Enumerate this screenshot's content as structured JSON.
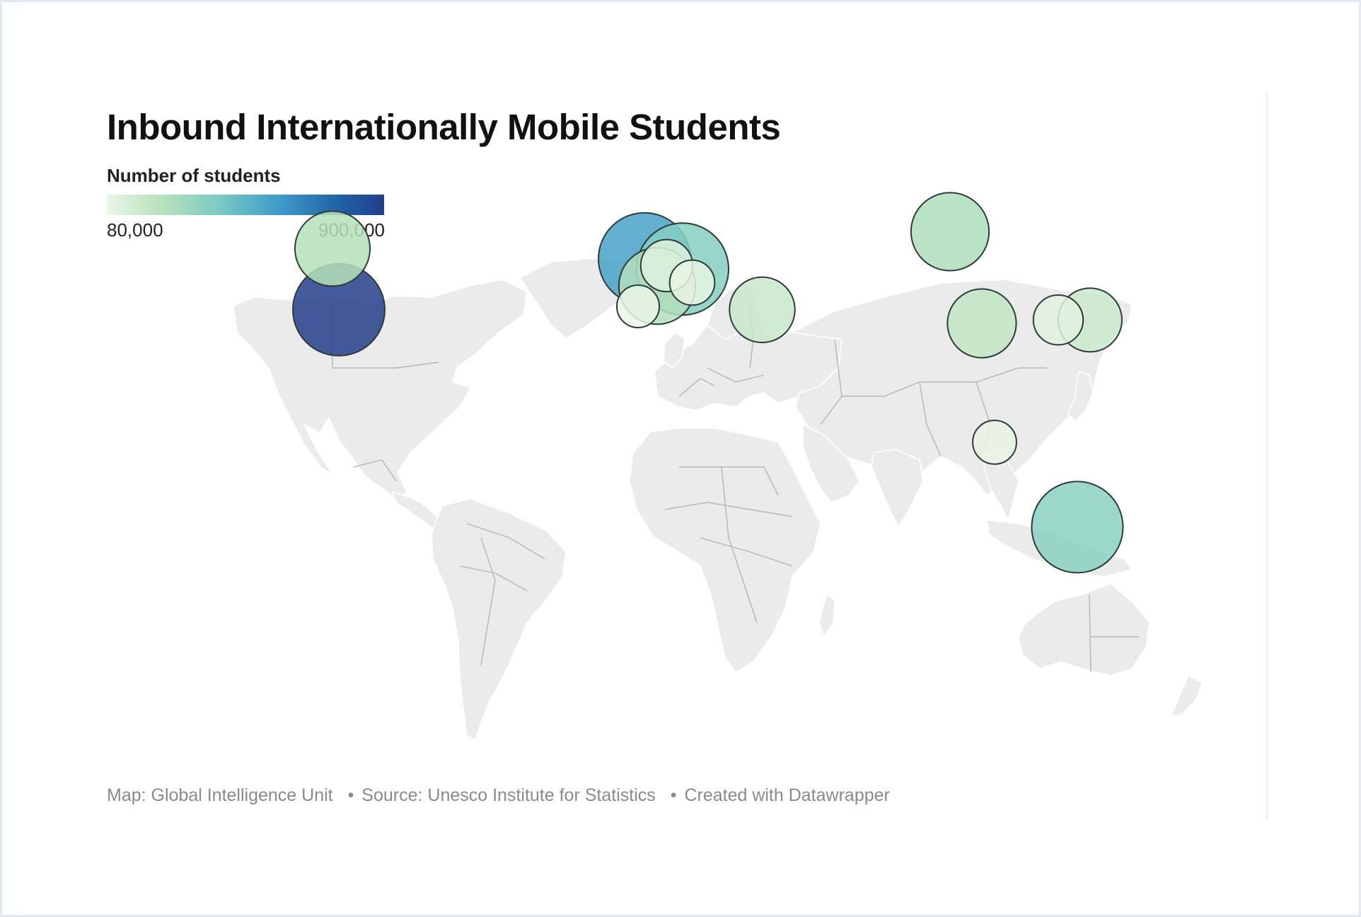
{
  "title": "Inbound Internationally Mobile Students",
  "legend": {
    "title": "Number of students",
    "min_label": "80,000",
    "max_label": "900,000",
    "min": 80000,
    "max": 900000,
    "colors": [
      "#eaf6e6",
      "#b7e1bb",
      "#7ccbc4",
      "#3f9bc9",
      "#1f5fa5",
      "#233f8b"
    ]
  },
  "footer": {
    "map_credit": "Map: Global Intelligence Unit",
    "sep": "•",
    "source": "Source: Unesco Institute for Statistics",
    "created": "Created with Datawrapper"
  },
  "colors": {
    "land": "#ebebeb",
    "border": "#b5b5b5",
    "bubble_stroke": "#2f3b3b"
  },
  "chart_data": {
    "type": "bubble-map",
    "value_label": "Number of students",
    "range": [
      80000,
      900000
    ],
    "points": [
      {
        "lon": -98,
        "lat": 39,
        "value": 900000
      },
      {
        "lon": -100,
        "lat": 57,
        "value": 250000
      },
      {
        "lon": -2,
        "lat": 54,
        "value": 550000
      },
      {
        "lon": 10,
        "lat": 51,
        "value": 380000
      },
      {
        "lon": 2,
        "lat": 46,
        "value": 260000
      },
      {
        "lon": 5,
        "lat": 52,
        "value": 120000
      },
      {
        "lon": 13,
        "lat": 47,
        "value": 90000
      },
      {
        "lon": -4,
        "lat": 40,
        "value": 80000
      },
      {
        "lon": 35,
        "lat": 39,
        "value": 190000
      },
      {
        "lon": 94,
        "lat": 62,
        "value": 270000
      },
      {
        "lon": 104,
        "lat": 35,
        "value": 210000
      },
      {
        "lon": 128,
        "lat": 36,
        "value": 110000
      },
      {
        "lon": 138,
        "lat": 36,
        "value": 180000
      },
      {
        "lon": 108,
        "lat": 0,
        "value": 85000
      },
      {
        "lon": 134,
        "lat": -25,
        "value": 370000
      }
    ]
  }
}
